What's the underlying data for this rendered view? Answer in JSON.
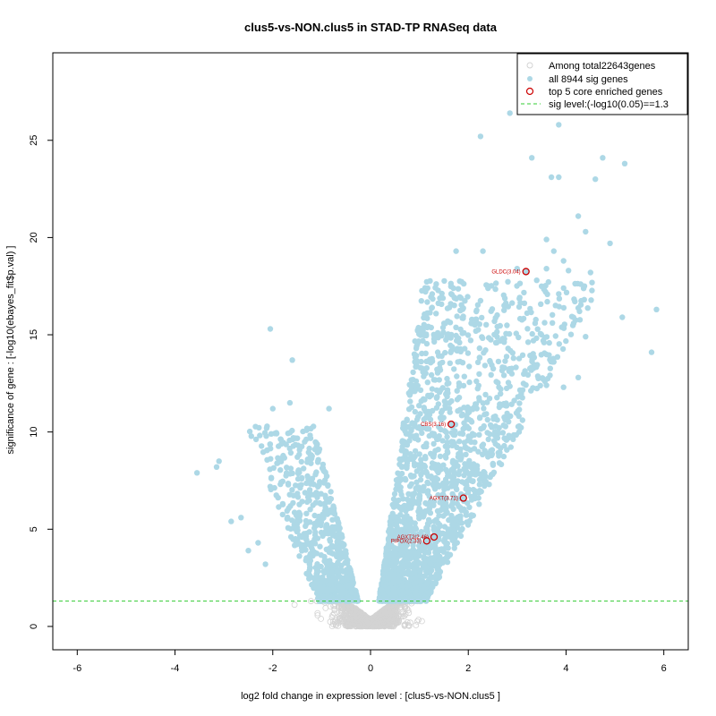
{
  "chart_data": {
    "type": "scatter",
    "title": "clus5-vs-NON.clus5 in STAD-TP RNASeq data",
    "xlabel": "log2 fold change in expression level : [clus5-vs-NON.clus5 ]",
    "ylabel": "significance of gene : [-log10(ebayes_fit$p.val) ]",
    "xlim": [
      -6.5,
      6.5
    ],
    "ylim": [
      -1.2,
      29.5
    ],
    "xticks": [
      -6,
      -4,
      -2,
      0,
      2,
      4,
      6
    ],
    "yticks": [
      0,
      5,
      10,
      15,
      20,
      25
    ],
    "sig_level": 1.3,
    "legend": {
      "position": "top-right",
      "entries": [
        {
          "label": "Among total22643genes",
          "symbol": "open-circle",
          "color": "#d3d3d3"
        },
        {
          "label": "all 8944 sig genes",
          "symbol": "filled-circle",
          "color": "#add8e6"
        },
        {
          "label": "top 5 core enriched genes",
          "symbol": "open-circle",
          "color": "#cc0000"
        },
        {
          "label": "sig level:(-log10(0.05)==1.3",
          "symbol": "dashed-line",
          "color": "#33cc33"
        }
      ]
    },
    "colors": {
      "nonsig": "#d3d3d3",
      "sig": "#add8e6",
      "top": "#cc0000",
      "siglevel": "#33cc33"
    },
    "outliers": [
      [
        2.85,
        26.4
      ],
      [
        3.85,
        25.8
      ],
      [
        2.25,
        25.2
      ],
      [
        3.3,
        24.1
      ],
      [
        4.75,
        24.1
      ],
      [
        5.2,
        23.8
      ],
      [
        3.7,
        23.1
      ],
      [
        3.85,
        23.1
      ],
      [
        4.6,
        23.0
      ],
      [
        4.25,
        21.1
      ],
      [
        4.4,
        20.3
      ],
      [
        3.6,
        19.9
      ],
      [
        4.9,
        19.7
      ],
      [
        1.75,
        19.3
      ],
      [
        2.3,
        19.3
      ],
      [
        3.75,
        19.3
      ],
      [
        3.95,
        18.8
      ],
      [
        3.6,
        18.4
      ],
      [
        3.0,
        18.4
      ],
      [
        4.05,
        18.3
      ],
      [
        4.5,
        18.2
      ],
      [
        3.4,
        17.8
      ],
      [
        4.3,
        17.6
      ],
      [
        3.95,
        17.4
      ],
      [
        3.85,
        17.1
      ],
      [
        5.85,
        16.3
      ],
      [
        5.15,
        15.9
      ],
      [
        4.4,
        14.9
      ],
      [
        3.55,
        14.6
      ],
      [
        3.75,
        13.6
      ],
      [
        4.25,
        12.8
      ],
      [
        3.6,
        12.4
      ],
      [
        3.95,
        12.3
      ],
      [
        5.75,
        14.1
      ],
      [
        -2.05,
        15.3
      ],
      [
        -1.6,
        13.7
      ],
      [
        -1.65,
        11.5
      ],
      [
        -2.0,
        11.2
      ],
      [
        -0.85,
        11.2
      ],
      [
        -3.55,
        7.9
      ],
      [
        -3.15,
        8.2
      ],
      [
        -3.1,
        8.5
      ],
      [
        -2.85,
        5.4
      ],
      [
        -2.65,
        5.6
      ],
      [
        -2.3,
        4.3
      ],
      [
        -2.5,
        3.9
      ],
      [
        -2.15,
        3.2
      ]
    ],
    "top_genes": [
      {
        "label": "GLDC(3.04)",
        "x": 3.18,
        "y": 18.25
      },
      {
        "label": "CBS(3.16)",
        "x": 1.65,
        "y": 10.4
      },
      {
        "label": "AGXT(3.71)",
        "x": 1.9,
        "y": 6.6
      },
      {
        "label": "AGXT2(2.46)",
        "x": 1.3,
        "y": 4.6
      },
      {
        "label": "PIPOX(2.33)",
        "x": 1.15,
        "y": 4.4
      }
    ],
    "cloud": {
      "sig_genes": 8944,
      "total_genes": 22643,
      "rendered_sig_points": 2600,
      "rendered_nonsig_points": 1600,
      "positive_share": 0.74
    }
  }
}
